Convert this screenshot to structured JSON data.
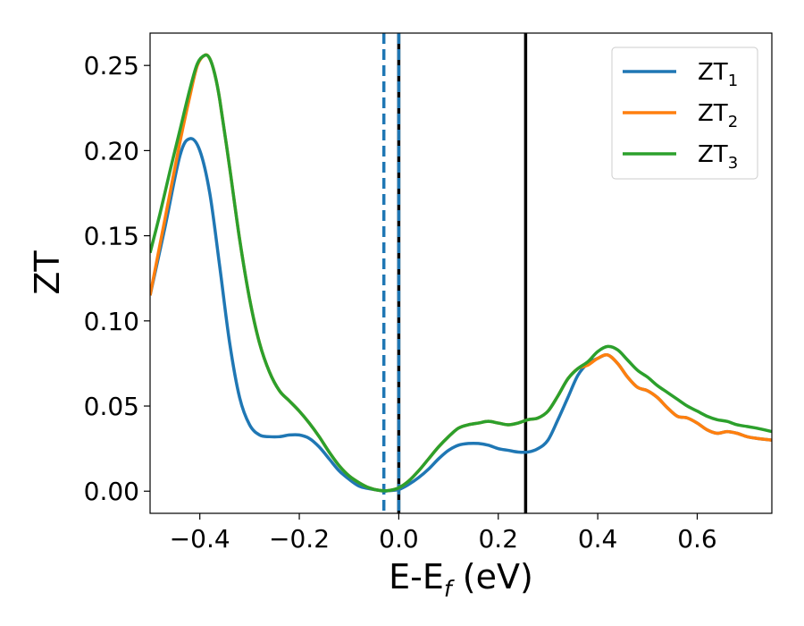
{
  "chart_data": {
    "type": "line",
    "xlabel": {
      "main": "E-E",
      "sub": "f",
      "suffix": " (eV)"
    },
    "ylabel": "ZT",
    "xlim": [
      -0.5,
      0.75
    ],
    "ylim": [
      -0.013,
      0.269
    ],
    "grid": false,
    "legend_position": "top-right",
    "xticks": [
      {
        "value": -0.4,
        "label": "−0.4"
      },
      {
        "value": -0.2,
        "label": "−0.2"
      },
      {
        "value": 0.0,
        "label": "0.0"
      },
      {
        "value": 0.2,
        "label": "0.2"
      },
      {
        "value": 0.4,
        "label": "0.4"
      },
      {
        "value": 0.6,
        "label": "0.6"
      }
    ],
    "yticks": [
      {
        "value": 0.0,
        "label": "0.00"
      },
      {
        "value": 0.05,
        "label": "0.05"
      },
      {
        "value": 0.1,
        "label": "0.10"
      },
      {
        "value": 0.15,
        "label": "0.15"
      },
      {
        "value": 0.2,
        "label": "0.20"
      },
      {
        "value": 0.25,
        "label": "0.25"
      }
    ],
    "vlines": [
      {
        "x": -0.03,
        "color": "#1f77b4",
        "style": "dashed"
      },
      {
        "x": 0.0,
        "color": "#000000",
        "style": "solid"
      },
      {
        "x": 0.0,
        "color": "#1f77b4",
        "style": "dashed"
      },
      {
        "x": 0.255,
        "color": "#000000",
        "style": "solid"
      }
    ],
    "series": [
      {
        "name": "ZT",
        "sub": "1",
        "color": "#1f77b4",
        "points": [
          [
            -0.5,
            0.115
          ],
          [
            -0.47,
            0.155
          ],
          [
            -0.44,
            0.197
          ],
          [
            -0.42,
            0.207
          ],
          [
            -0.4,
            0.2
          ],
          [
            -0.38,
            0.175
          ],
          [
            -0.36,
            0.132
          ],
          [
            -0.34,
            0.087
          ],
          [
            -0.32,
            0.055
          ],
          [
            -0.3,
            0.039
          ],
          [
            -0.28,
            0.033
          ],
          [
            -0.26,
            0.032
          ],
          [
            -0.24,
            0.032
          ],
          [
            -0.22,
            0.033
          ],
          [
            -0.2,
            0.033
          ],
          [
            -0.18,
            0.031
          ],
          [
            -0.16,
            0.026
          ],
          [
            -0.14,
            0.019
          ],
          [
            -0.12,
            0.012
          ],
          [
            -0.1,
            0.007
          ],
          [
            -0.08,
            0.003
          ],
          [
            -0.06,
            0.0015
          ],
          [
            -0.04,
            0.0005
          ],
          [
            -0.03,
            0.0
          ],
          [
            -0.02,
            0.0003
          ],
          [
            0.0,
            0.001
          ],
          [
            0.02,
            0.004
          ],
          [
            0.04,
            0.008
          ],
          [
            0.06,
            0.013
          ],
          [
            0.08,
            0.019
          ],
          [
            0.1,
            0.024
          ],
          [
            0.12,
            0.027
          ],
          [
            0.14,
            0.028
          ],
          [
            0.16,
            0.028
          ],
          [
            0.18,
            0.027
          ],
          [
            0.2,
            0.025
          ],
          [
            0.22,
            0.024
          ],
          [
            0.24,
            0.023
          ],
          [
            0.26,
            0.023
          ],
          [
            0.28,
            0.025
          ],
          [
            0.3,
            0.03
          ],
          [
            0.32,
            0.042
          ],
          [
            0.34,
            0.055
          ],
          [
            0.36,
            0.068
          ],
          [
            0.38,
            0.075
          ],
          [
            0.4,
            0.078
          ],
          [
            0.42,
            0.08
          ],
          [
            0.44,
            0.075
          ],
          [
            0.46,
            0.067
          ],
          [
            0.48,
            0.061
          ],
          [
            0.5,
            0.059
          ],
          [
            0.52,
            0.055
          ],
          [
            0.54,
            0.049
          ],
          [
            0.56,
            0.044
          ],
          [
            0.58,
            0.043
          ],
          [
            0.6,
            0.04
          ],
          [
            0.62,
            0.036
          ],
          [
            0.64,
            0.034
          ],
          [
            0.66,
            0.035
          ],
          [
            0.68,
            0.034
          ],
          [
            0.7,
            0.032
          ],
          [
            0.72,
            0.031
          ],
          [
            0.75,
            0.03
          ]
        ]
      },
      {
        "name": "ZT",
        "sub": "2",
        "color": "#ff7f0e",
        "points": [
          [
            -0.5,
            0.115
          ],
          [
            -0.48,
            0.145
          ],
          [
            -0.46,
            0.175
          ],
          [
            -0.44,
            0.205
          ],
          [
            -0.42,
            0.232
          ],
          [
            -0.405,
            0.25
          ],
          [
            -0.39,
            0.256
          ],
          [
            -0.38,
            0.254
          ],
          [
            -0.37,
            0.245
          ],
          [
            -0.36,
            0.23
          ],
          [
            -0.34,
            0.19
          ],
          [
            -0.32,
            0.148
          ],
          [
            -0.3,
            0.113
          ],
          [
            -0.28,
            0.087
          ],
          [
            -0.26,
            0.07
          ],
          [
            -0.24,
            0.059
          ],
          [
            -0.22,
            0.053
          ],
          [
            -0.2,
            0.047
          ],
          [
            -0.18,
            0.04
          ],
          [
            -0.16,
            0.032
          ],
          [
            -0.14,
            0.023
          ],
          [
            -0.12,
            0.015
          ],
          [
            -0.1,
            0.009
          ],
          [
            -0.08,
            0.005
          ],
          [
            -0.06,
            0.002
          ],
          [
            -0.04,
            0.0005
          ],
          [
            -0.02,
            0.0004
          ],
          [
            0.0,
            0.002
          ],
          [
            0.02,
            0.006
          ],
          [
            0.04,
            0.012
          ],
          [
            0.06,
            0.019
          ],
          [
            0.08,
            0.026
          ],
          [
            0.1,
            0.032
          ],
          [
            0.12,
            0.037
          ],
          [
            0.14,
            0.039
          ],
          [
            0.16,
            0.04
          ],
          [
            0.18,
            0.041
          ],
          [
            0.2,
            0.04
          ],
          [
            0.22,
            0.039
          ],
          [
            0.24,
            0.04
          ],
          [
            0.26,
            0.042
          ],
          [
            0.28,
            0.043
          ],
          [
            0.3,
            0.047
          ],
          [
            0.32,
            0.056
          ],
          [
            0.34,
            0.066
          ],
          [
            0.36,
            0.072
          ],
          [
            0.38,
            0.074
          ],
          [
            0.4,
            0.078
          ],
          [
            0.42,
            0.08
          ],
          [
            0.44,
            0.075
          ],
          [
            0.46,
            0.067
          ],
          [
            0.48,
            0.061
          ],
          [
            0.5,
            0.059
          ],
          [
            0.52,
            0.055
          ],
          [
            0.54,
            0.049
          ],
          [
            0.56,
            0.044
          ],
          [
            0.58,
            0.043
          ],
          [
            0.6,
            0.04
          ],
          [
            0.62,
            0.036
          ],
          [
            0.64,
            0.034
          ],
          [
            0.66,
            0.035
          ],
          [
            0.68,
            0.034
          ],
          [
            0.7,
            0.032
          ],
          [
            0.72,
            0.031
          ],
          [
            0.75,
            0.03
          ]
        ]
      },
      {
        "name": "ZT",
        "sub": "3",
        "color": "#2ca02c",
        "points": [
          [
            -0.5,
            0.14
          ],
          [
            -0.48,
            0.163
          ],
          [
            -0.46,
            0.188
          ],
          [
            -0.44,
            0.212
          ],
          [
            -0.42,
            0.236
          ],
          [
            -0.405,
            0.251
          ],
          [
            -0.39,
            0.256
          ],
          [
            -0.38,
            0.254
          ],
          [
            -0.37,
            0.245
          ],
          [
            -0.36,
            0.23
          ],
          [
            -0.34,
            0.19
          ],
          [
            -0.32,
            0.148
          ],
          [
            -0.3,
            0.113
          ],
          [
            -0.28,
            0.087
          ],
          [
            -0.26,
            0.07
          ],
          [
            -0.24,
            0.059
          ],
          [
            -0.22,
            0.053
          ],
          [
            -0.2,
            0.047
          ],
          [
            -0.18,
            0.04
          ],
          [
            -0.16,
            0.032
          ],
          [
            -0.14,
            0.023
          ],
          [
            -0.12,
            0.015
          ],
          [
            -0.1,
            0.009
          ],
          [
            -0.08,
            0.005
          ],
          [
            -0.06,
            0.002
          ],
          [
            -0.04,
            0.0005
          ],
          [
            -0.02,
            0.0004
          ],
          [
            0.0,
            0.002
          ],
          [
            0.02,
            0.006
          ],
          [
            0.04,
            0.012
          ],
          [
            0.06,
            0.019
          ],
          [
            0.08,
            0.026
          ],
          [
            0.1,
            0.032
          ],
          [
            0.12,
            0.037
          ],
          [
            0.14,
            0.039
          ],
          [
            0.16,
            0.04
          ],
          [
            0.18,
            0.041
          ],
          [
            0.2,
            0.04
          ],
          [
            0.22,
            0.039
          ],
          [
            0.24,
            0.04
          ],
          [
            0.26,
            0.042
          ],
          [
            0.28,
            0.043
          ],
          [
            0.3,
            0.047
          ],
          [
            0.32,
            0.056
          ],
          [
            0.34,
            0.066
          ],
          [
            0.36,
            0.072
          ],
          [
            0.38,
            0.076
          ],
          [
            0.4,
            0.082
          ],
          [
            0.42,
            0.085
          ],
          [
            0.44,
            0.083
          ],
          [
            0.46,
            0.077
          ],
          [
            0.48,
            0.071
          ],
          [
            0.5,
            0.067
          ],
          [
            0.52,
            0.062
          ],
          [
            0.54,
            0.058
          ],
          [
            0.56,
            0.054
          ],
          [
            0.58,
            0.05
          ],
          [
            0.6,
            0.047
          ],
          [
            0.62,
            0.044
          ],
          [
            0.64,
            0.042
          ],
          [
            0.66,
            0.041
          ],
          [
            0.68,
            0.039
          ],
          [
            0.7,
            0.038
          ],
          [
            0.72,
            0.037
          ],
          [
            0.75,
            0.035
          ]
        ]
      }
    ]
  }
}
